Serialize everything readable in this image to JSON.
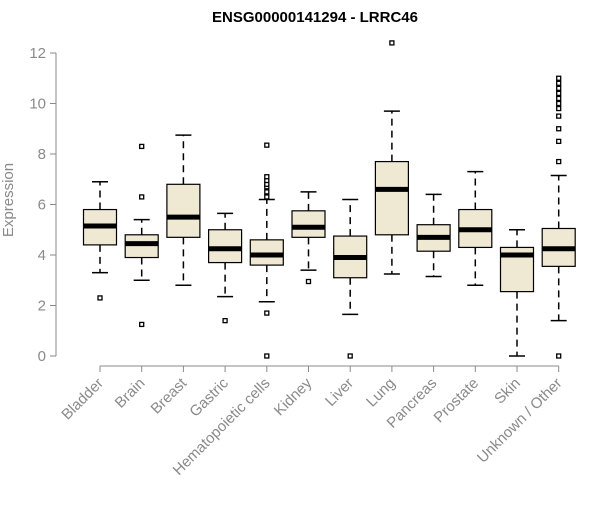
{
  "chart_data": {
    "type": "boxplot",
    "title": "ENSG00000141294 - LRRC46",
    "ylabel": "Expression",
    "xlabel": "",
    "ylim": [
      0,
      12
    ],
    "yticks": [
      0,
      2,
      4,
      6,
      8,
      10,
      12
    ],
    "grid": false,
    "legend": "none",
    "colors": {
      "box_fill": "#efe8d2",
      "box_stroke": "#000000",
      "median": "#000000",
      "axis": "#8a8a8a"
    },
    "categories": [
      "Bladder",
      "Brain",
      "Breast",
      "Gastric",
      "Hematopoietic cells",
      "Kidney",
      "Liver",
      "Lung",
      "Pancreas",
      "Prostate",
      "Skin",
      "Unknown / Other"
    ],
    "boxes": [
      {
        "category": "Bladder",
        "whisker_low": 3.3,
        "q1": 4.4,
        "median": 5.15,
        "q3": 5.8,
        "whisker_high": 6.9,
        "outliers": [
          2.3
        ]
      },
      {
        "category": "Brain",
        "whisker_low": 3.0,
        "q1": 3.9,
        "median": 4.45,
        "q3": 4.8,
        "whisker_high": 5.4,
        "outliers": [
          1.25,
          6.3,
          8.3
        ]
      },
      {
        "category": "Breast",
        "whisker_low": 2.8,
        "q1": 4.7,
        "median": 5.5,
        "q3": 6.8,
        "whisker_high": 8.75,
        "outliers": []
      },
      {
        "category": "Gastric",
        "whisker_low": 2.35,
        "q1": 3.7,
        "median": 4.25,
        "q3": 5.0,
        "whisker_high": 5.65,
        "outliers": [
          1.4
        ]
      },
      {
        "category": "Hematopoietic cells",
        "whisker_low": 2.15,
        "q1": 3.6,
        "median": 4.0,
        "q3": 4.6,
        "whisker_high": 6.2,
        "outliers": [
          0.0,
          1.7,
          6.3,
          6.5,
          6.7,
          6.8,
          6.95,
          7.1,
          8.35
        ]
      },
      {
        "category": "Kidney",
        "whisker_low": 3.4,
        "q1": 4.7,
        "median": 5.1,
        "q3": 5.75,
        "whisker_high": 6.5,
        "outliers": [
          2.95
        ]
      },
      {
        "category": "Liver",
        "whisker_low": 1.65,
        "q1": 3.1,
        "median": 3.9,
        "q3": 4.75,
        "whisker_high": 6.2,
        "outliers": [
          0.0
        ]
      },
      {
        "category": "Lung",
        "whisker_low": 3.25,
        "q1": 4.8,
        "median": 6.6,
        "q3": 7.7,
        "whisker_high": 9.7,
        "outliers": [
          12.4
        ]
      },
      {
        "category": "Pancreas",
        "whisker_low": 3.15,
        "q1": 4.15,
        "median": 4.7,
        "q3": 5.2,
        "whisker_high": 6.4,
        "outliers": []
      },
      {
        "category": "Prostate",
        "whisker_low": 2.8,
        "q1": 4.3,
        "median": 5.0,
        "q3": 5.8,
        "whisker_high": 7.3,
        "outliers": []
      },
      {
        "category": "Skin",
        "whisker_low": 0.0,
        "q1": 2.55,
        "median": 4.0,
        "q3": 4.3,
        "whisker_high": 5.0,
        "outliers": []
      },
      {
        "category": "Unknown / Other",
        "whisker_low": 1.4,
        "q1": 3.55,
        "median": 4.25,
        "q3": 5.05,
        "whisker_high": 7.15,
        "outliers": [
          0.0,
          7.7,
          8.5,
          9.0,
          9.5,
          9.8,
          10.0,
          10.2,
          10.4,
          10.6,
          10.8,
          11.0
        ]
      }
    ]
  }
}
